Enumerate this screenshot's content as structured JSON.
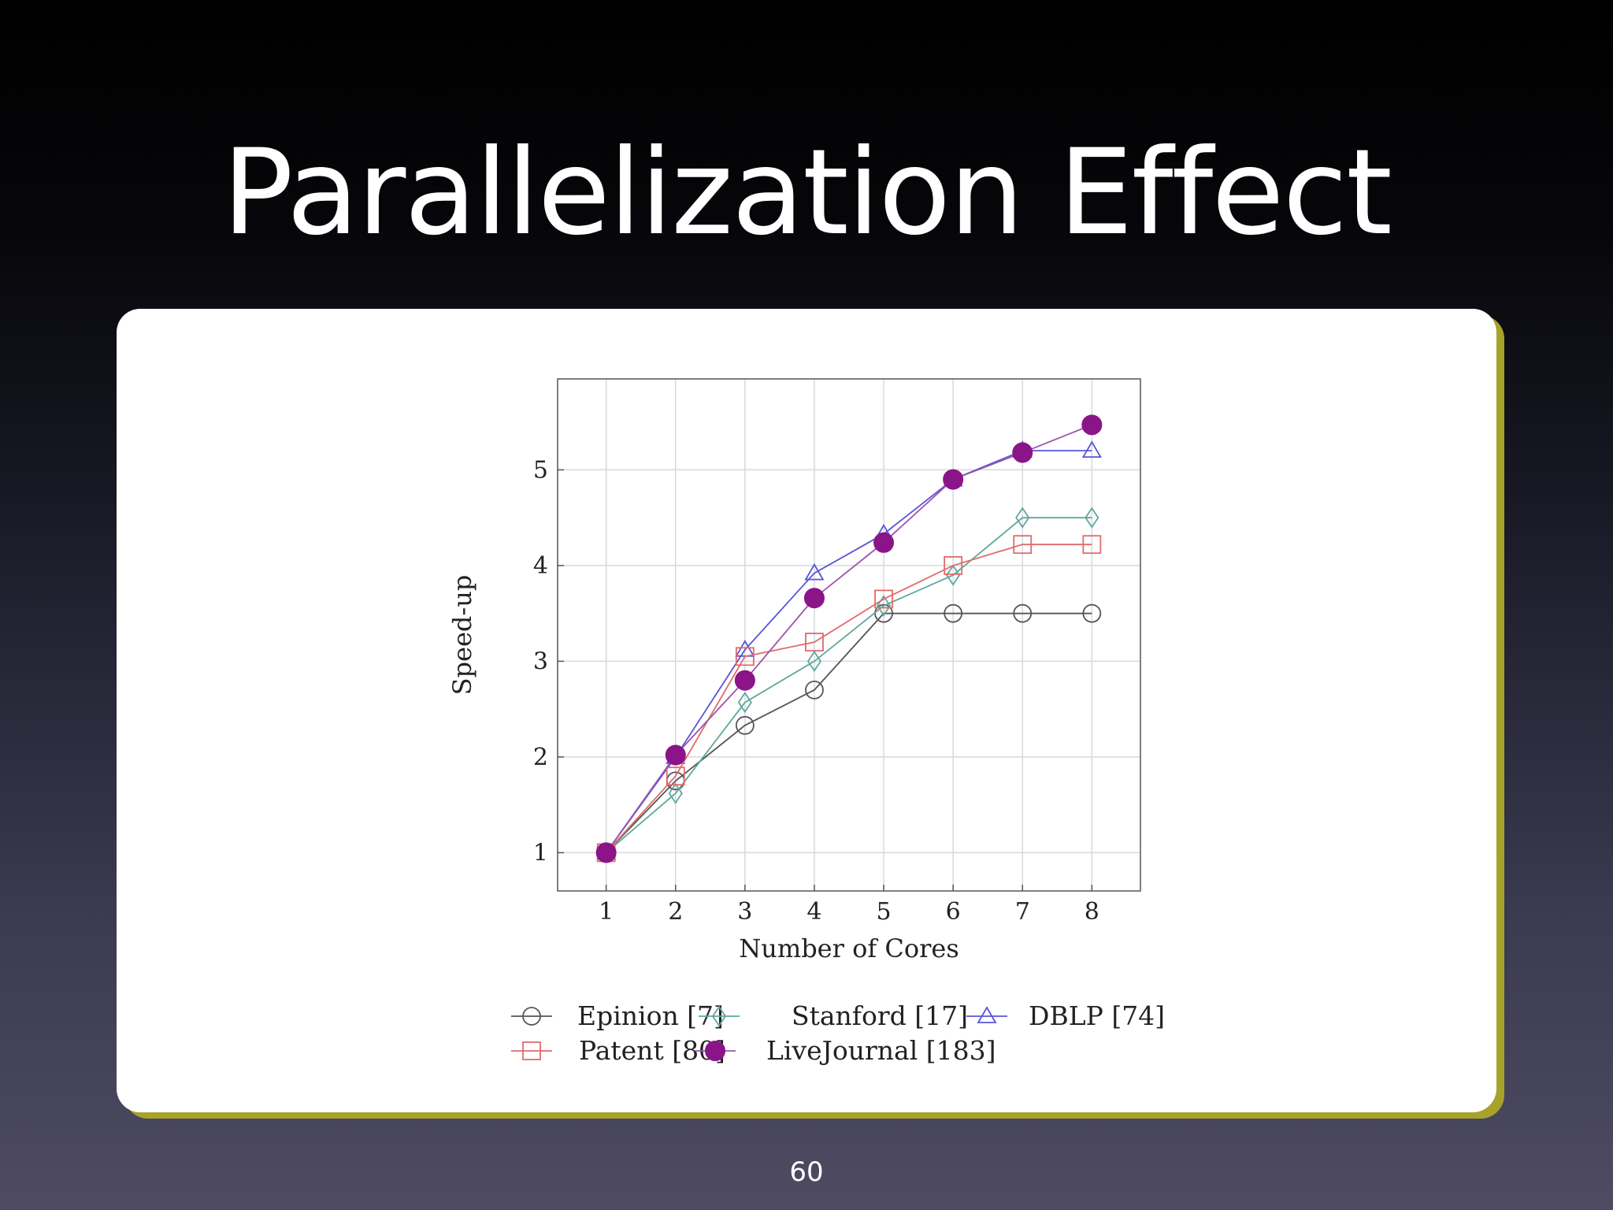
{
  "slide": {
    "title": "Parallelization Effect",
    "page_number": "60"
  },
  "chart_data": {
    "type": "line",
    "x": [
      1,
      2,
      3,
      4,
      5,
      6,
      7,
      8
    ],
    "xlabel": "Number of Cores",
    "ylabel": "Speed-up",
    "xlim": [
      0.3,
      8.7
    ],
    "ylim": [
      0.6,
      5.95
    ],
    "xticks": [
      1,
      2,
      3,
      4,
      5,
      6,
      7,
      8
    ],
    "yticks": [
      1,
      2,
      3,
      4,
      5
    ],
    "grid": true,
    "legend_position": "bottom",
    "series": [
      {
        "name": "Epinion [7]",
        "marker": "circle-open",
        "color": "#555555",
        "values": [
          1.0,
          1.75,
          2.33,
          2.7,
          3.5,
          3.5,
          3.5,
          3.5
        ]
      },
      {
        "name": "Stanford [17]",
        "marker": "diamond-open",
        "color": "#5fa89a",
        "values": [
          1.0,
          1.62,
          2.57,
          3.0,
          3.58,
          3.9,
          4.5,
          4.5
        ]
      },
      {
        "name": "DBLP [74]",
        "marker": "triangle-open",
        "color": "#5a55d6",
        "values": [
          1.0,
          2.0,
          3.12,
          3.92,
          4.33,
          4.9,
          5.2,
          5.2
        ]
      },
      {
        "name": "Patent [80]",
        "marker": "square-open",
        "color": "#e06b6b",
        "values": [
          1.0,
          1.8,
          3.05,
          3.2,
          3.65,
          4.0,
          4.22,
          4.22
        ]
      },
      {
        "name": "LiveJournal [183]",
        "marker": "circle-filled",
        "color": "#8a1488",
        "line_color": "#9b55a8",
        "values": [
          1.0,
          2.02,
          2.8,
          3.66,
          4.24,
          4.9,
          5.18,
          5.47
        ]
      }
    ]
  }
}
